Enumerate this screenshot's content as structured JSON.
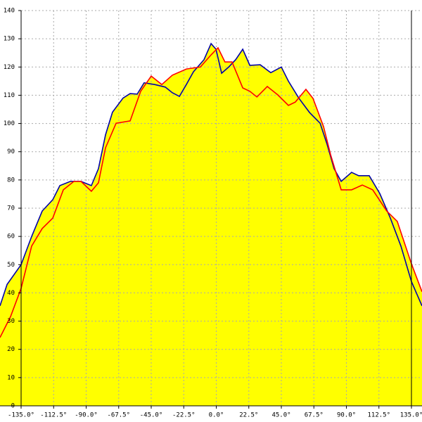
{
  "chart_data": {
    "type": "area-line",
    "xlim": [
      -149.6,
      142.3
    ],
    "ylim": [
      0,
      140
    ],
    "xticks": [
      {
        "value": -135,
        "label": "-135.0°"
      },
      {
        "value": -112.5,
        "label": "-112.5°"
      },
      {
        "value": -90,
        "label": "-90.0°"
      },
      {
        "value": -67.5,
        "label": "-67.5°"
      },
      {
        "value": -45,
        "label": "-45.0°"
      },
      {
        "value": -22.5,
        "label": "-22.5°"
      },
      {
        "value": 0,
        "label": "0.0°"
      },
      {
        "value": 22.5,
        "label": "22.5°"
      },
      {
        "value": 45,
        "label": "45.0°"
      },
      {
        "value": 67.5,
        "label": "67.5°"
      },
      {
        "value": 90,
        "label": "90.0°"
      },
      {
        "value": 112.5,
        "label": "112.5°"
      },
      {
        "value": 135,
        "label": "135.0°"
      }
    ],
    "yticks": [
      0,
      10,
      20,
      30,
      40,
      50,
      60,
      70,
      80,
      90,
      100,
      110,
      120,
      130,
      140
    ],
    "grid": true,
    "fill_color": "#ffff00",
    "series": [
      {
        "color": "#0000aa",
        "x": [
          -149.6,
          -144.7,
          -135,
          -127.7,
          -120.4,
          -113.1,
          -108.2,
          -100.9,
          -93.6,
          -86.4,
          -81.5,
          -76.6,
          -71.8,
          -64.5,
          -59.6,
          -54.7,
          -49.9,
          -42.6,
          -35.3,
          -30.4,
          -25.5,
          -20.7,
          -15.8,
          -8.5,
          -3.6,
          -0.2,
          3.7,
          8.6,
          13.4,
          18.3,
          23.2,
          30.4,
          37.7,
          45,
          49.9,
          57.2,
          64.5,
          71.8,
          76.6,
          81.5,
          86.4,
          93.6,
          98.5,
          105.8,
          113.1,
          120.4,
          127.7,
          135,
          142.3
        ],
        "values": [
          35.4,
          43,
          50,
          60,
          69,
          73,
          78,
          79.5,
          79.5,
          78,
          84,
          96,
          104,
          109,
          110.6,
          110.4,
          114.4,
          113.8,
          112.9,
          110.9,
          109.6,
          113.8,
          118.3,
          122.6,
          128.3,
          126.3,
          117.8,
          120,
          122.6,
          126.3,
          120.6,
          120.8,
          118,
          120,
          115,
          108.9,
          103.9,
          100.1,
          92.7,
          84,
          79.5,
          82.7,
          81.5,
          81.5,
          75.2,
          66.5,
          56.6,
          44,
          35.4
        ]
      },
      {
        "color": "#ff0000",
        "x": [
          -149.6,
          -142.3,
          -135,
          -127.7,
          -120.4,
          -113.1,
          -105.8,
          -98.5,
          -93.6,
          -86.4,
          -81.5,
          -76.6,
          -69.3,
          -59.6,
          -52.3,
          -45,
          -37.7,
          -30.4,
          -20.7,
          -11,
          -3.6,
          1.2,
          6,
          10.9,
          18.3,
          23.2,
          28.1,
          35.3,
          42.6,
          49.9,
          54.7,
          62,
          66.9,
          74.2,
          79.1,
          86.4,
          93.6,
          101,
          108.2,
          117.9,
          125.2,
          135,
          142.3
        ],
        "values": [
          24.2,
          31.6,
          41.6,
          56.6,
          62.8,
          66.5,
          76.5,
          79.5,
          79.5,
          76,
          79,
          91.4,
          100.1,
          100.9,
          111.4,
          116.8,
          113.8,
          117.1,
          119.3,
          120,
          124.3,
          126.8,
          121.8,
          121.8,
          112.6,
          111.4,
          109.4,
          113.1,
          110.1,
          106.4,
          107.6,
          112.1,
          108.9,
          98.9,
          88.9,
          76.5,
          76.5,
          78.2,
          76.5,
          69,
          65.3,
          50.3,
          40.4
        ]
      }
    ]
  }
}
